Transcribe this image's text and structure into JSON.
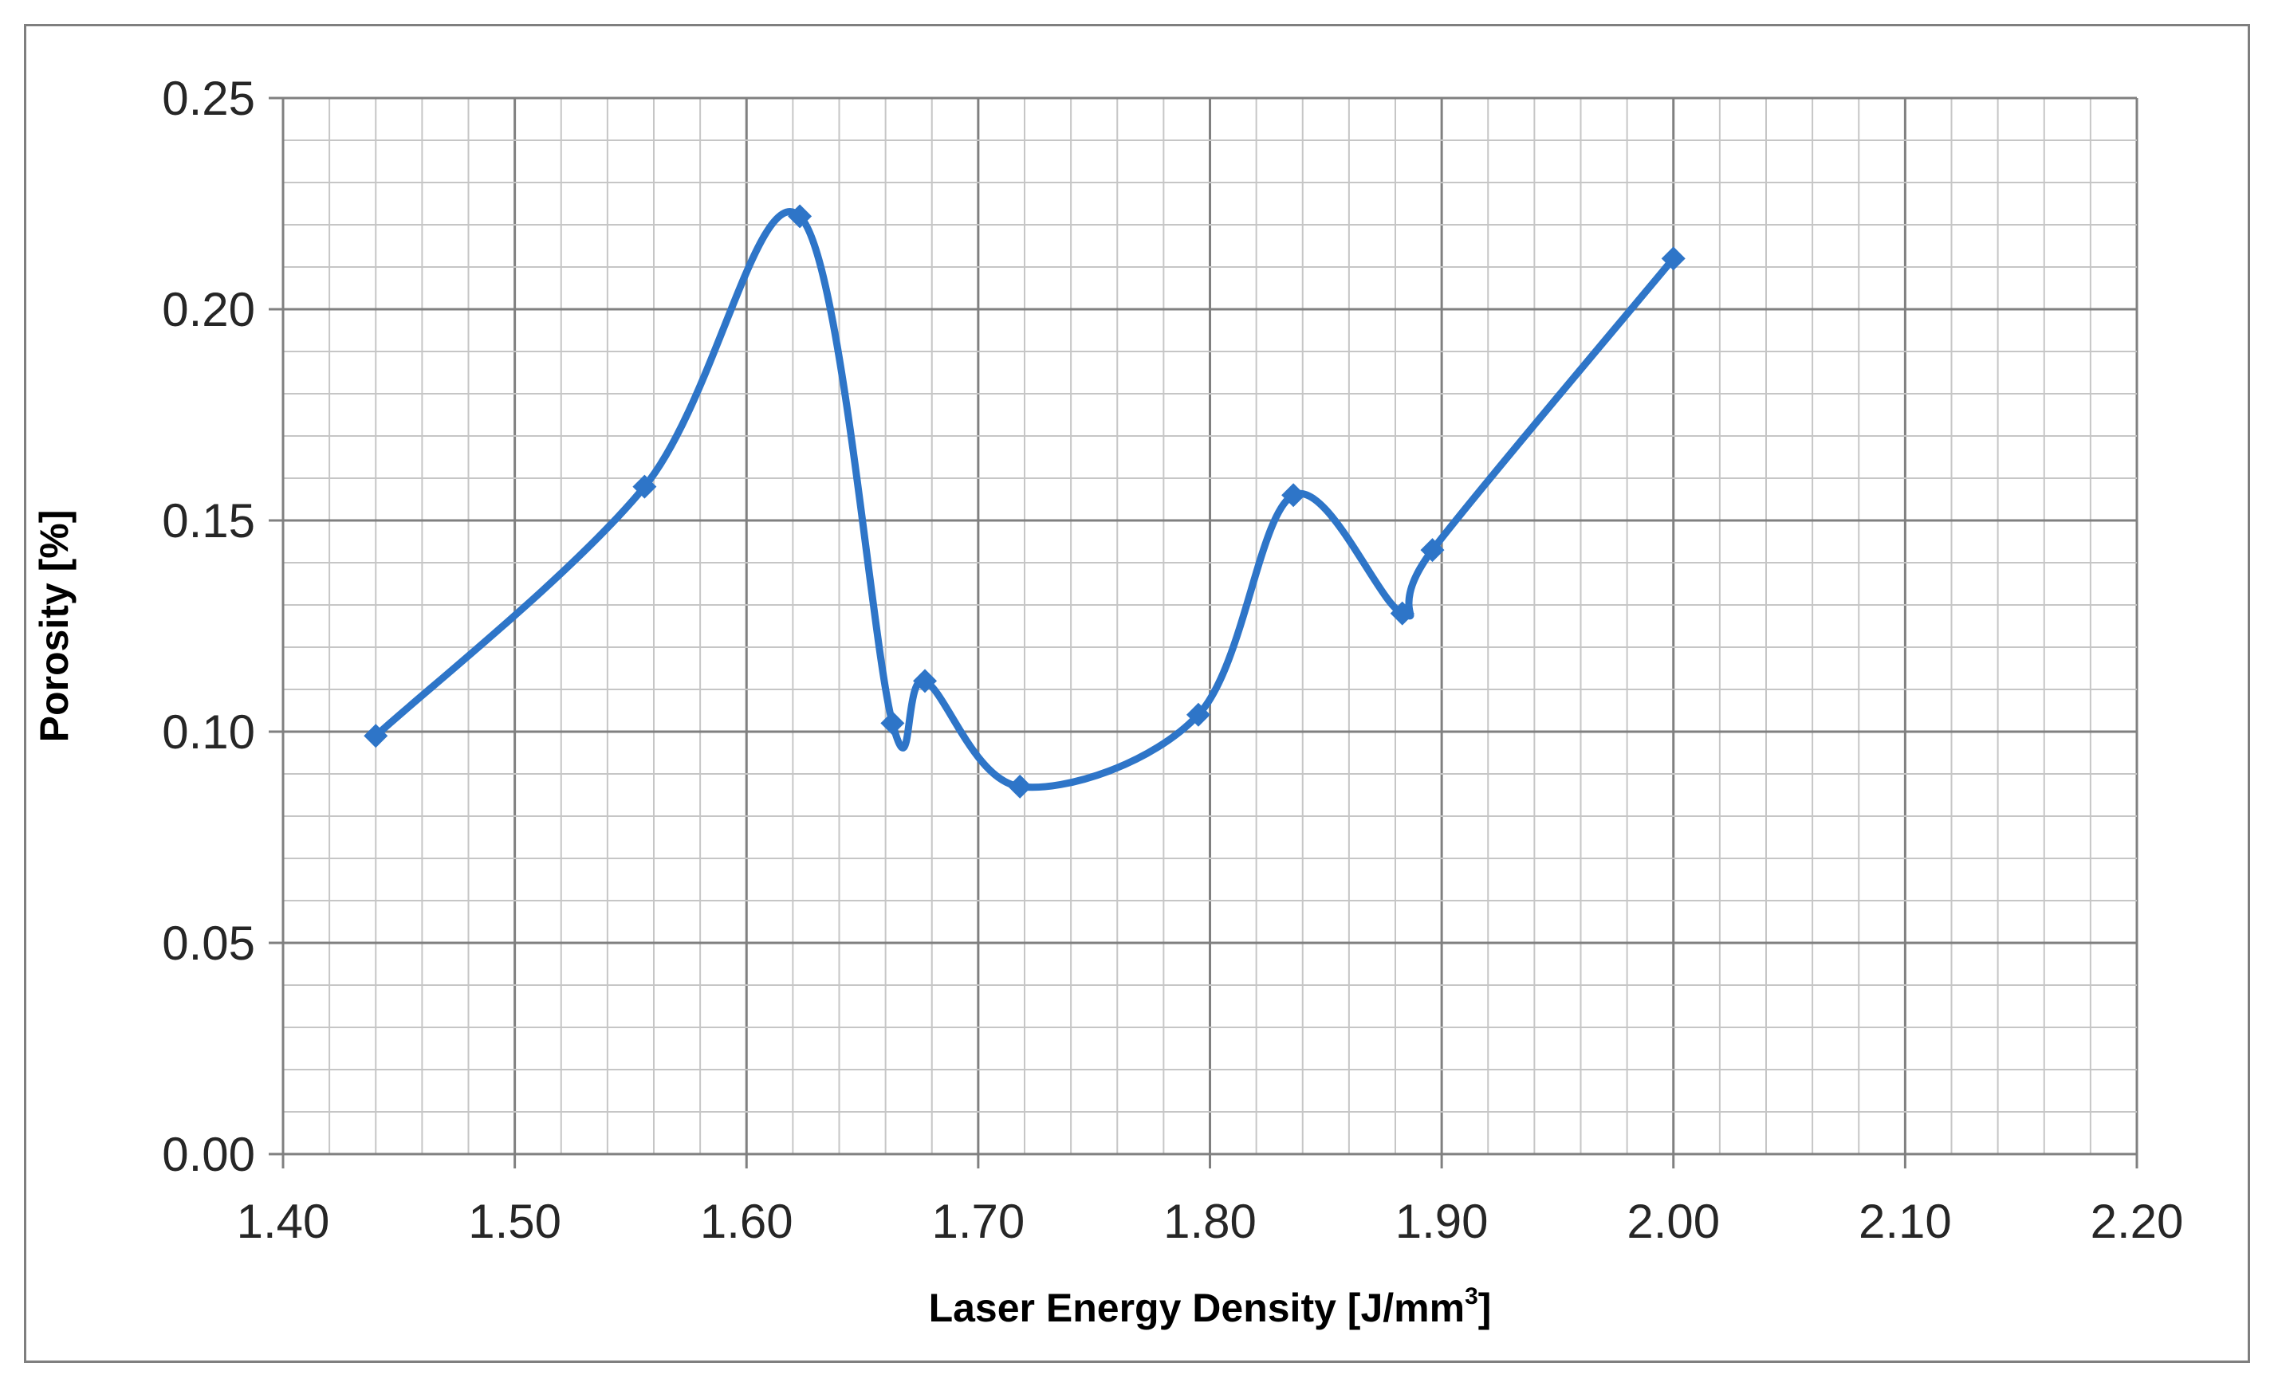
{
  "chart_data": {
    "type": "line",
    "title": "",
    "xlabel": "Laser Energy Density [J/mm",
    "xlabel_sup": "3",
    "xlabel_end": "]",
    "ylabel": "Porosity [%]",
    "xlim": [
      1.4,
      2.2
    ],
    "ylim": [
      0.0,
      0.25
    ],
    "x_major_step": 0.1,
    "x_minor_step": 0.02,
    "y_major_step": 0.05,
    "y_minor_step": 0.01,
    "x_tick_labels": [
      "1.40",
      "1.50",
      "1.60",
      "1.70",
      "1.80",
      "1.90",
      "2.00",
      "2.10",
      "2.20"
    ],
    "y_tick_labels": [
      "0.00",
      "0.05",
      "0.10",
      "0.15",
      "0.20",
      "0.25"
    ],
    "grid": true,
    "smooth": true,
    "marker": "diamond",
    "series": [
      {
        "color": "#2e75c8",
        "x": [
          1.44,
          1.556,
          1.623,
          1.663,
          1.677,
          1.718,
          1.795,
          1.836,
          1.883,
          1.896,
          2.0
        ],
        "y": [
          0.099,
          0.158,
          0.222,
          0.102,
          0.112,
          0.087,
          0.104,
          0.156,
          0.128,
          0.143,
          0.212
        ]
      }
    ]
  }
}
